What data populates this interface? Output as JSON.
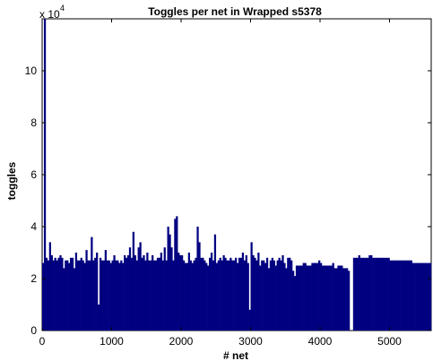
{
  "chart_data": {
    "type": "bar",
    "title": "Toggles per net in Wrapped s5378",
    "xlabel": "# net",
    "ylabel": "toggles",
    "y_multiplier": "x 10",
    "y_multiplier_exponent": "4",
    "xlim": [
      0,
      5600
    ],
    "ylim": [
      0,
      120000
    ],
    "x_ticks": [
      0,
      1000,
      2000,
      3000,
      4000,
      5000
    ],
    "x_tick_labels": [
      "0",
      "1000",
      "2000",
      "3000",
      "4000",
      "5000"
    ],
    "y_ticks": [
      0,
      20000,
      40000,
      60000,
      80000,
      100000
    ],
    "y_tick_labels": [
      "0",
      "2",
      "4",
      "6",
      "8",
      "10"
    ],
    "bar_color": "#000080",
    "grid": false,
    "x_step": 25,
    "series": [
      {
        "values": [
          26000,
          120000,
          28000,
          27000,
          34000,
          29000,
          27000,
          28000,
          27000,
          28000,
          29000,
          28000,
          24000,
          27000,
          27000,
          26000,
          28000,
          28000,
          24000,
          30000,
          27000,
          27000,
          28000,
          27000,
          26000,
          31000,
          27000,
          27000,
          36000,
          27000,
          28000,
          30000,
          10000,
          28000,
          27000,
          27000,
          31000,
          27000,
          27000,
          26000,
          27000,
          29000,
          27000,
          27000,
          26000,
          27000,
          26000,
          29000,
          28000,
          29000,
          32000,
          28000,
          38000,
          29000,
          27000,
          32000,
          34000,
          28000,
          29000,
          27000,
          30000,
          27000,
          27000,
          29000,
          27000,
          27000,
          28000,
          28000,
          30000,
          27000,
          32000,
          27000,
          40000,
          37000,
          32000,
          27000,
          43000,
          44000,
          30000,
          29000,
          29000,
          27000,
          26000,
          26000,
          30000,
          27000,
          26000,
          27000,
          28000,
          40000,
          34000,
          28000,
          28000,
          27000,
          26000,
          25000,
          28000,
          30000,
          27000,
          37000,
          26000,
          27000,
          28000,
          27000,
          29000,
          28000,
          27000,
          27000,
          28000,
          27000,
          27000,
          28000,
          26000,
          28000,
          28000,
          30000,
          27000,
          29000,
          26000,
          8000,
          34000,
          29000,
          28000,
          27000,
          30000,
          25000,
          27000,
          27000,
          26000,
          28000,
          24000,
          27000,
          28000,
          27000,
          25000,
          27000,
          28000,
          27000,
          29000,
          26000,
          24000,
          28000,
          28000,
          27000,
          23000,
          21000,
          25000,
          25000,
          25000,
          25000,
          26000,
          26000,
          25000,
          25000,
          25000,
          26000,
          26000,
          26000,
          26000,
          27000,
          26000,
          25000,
          25000,
          25000,
          25000,
          25000,
          25000,
          26000,
          24000,
          24000,
          25000,
          25000,
          25000,
          24000,
          24000,
          24000,
          23000,
          0,
          0,
          28000,
          28000,
          28000,
          29000,
          28000,
          28000,
          28000,
          28000,
          28000,
          29000,
          29000,
          28000,
          28000,
          28000,
          28000,
          28000,
          28000,
          28000,
          28000,
          28000,
          28000,
          27000,
          27000,
          27000,
          27000,
          27000,
          27000,
          27000,
          27000,
          27000,
          27000,
          27000,
          27000,
          27000,
          26000,
          26000,
          26000,
          26000,
          26000,
          26000,
          26000,
          26000,
          26000,
          26000,
          26000
        ]
      }
    ]
  }
}
